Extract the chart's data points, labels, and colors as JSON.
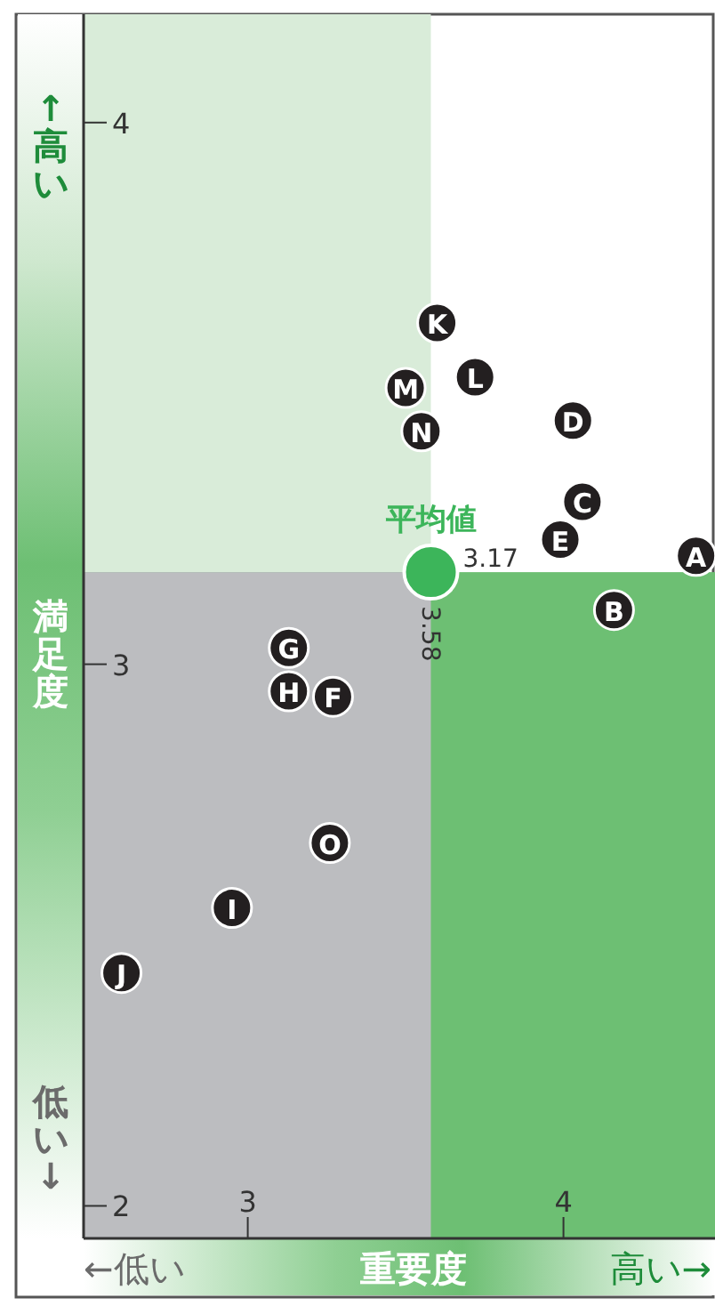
{
  "chart_data": {
    "type": "scatter",
    "xlabel": "重要度",
    "ylabel": "満足度",
    "xlim": [
      2.48,
      4.48
    ],
    "ylim": [
      1.94,
      4.2
    ],
    "xticks": [
      3,
      4
    ],
    "yticks": [
      2,
      3,
      4
    ],
    "grid": false,
    "marker": "circle",
    "bands": [
      {
        "axis": "x",
        "from": 2.48,
        "to": 3.58,
        "color": "#d9ecd9"
      },
      {
        "axis": "y",
        "from": 1.94,
        "to": 3.17,
        "color": "#6dbf73"
      }
    ],
    "series": [
      {
        "name": "平均値",
        "color": "#3cb55a",
        "x": [
          3.58
        ],
        "values": [
          3.17
        ]
      },
      {
        "name": "A",
        "color": "#231f20",
        "x": [
          4.42
        ],
        "values": [
          3.2
        ]
      },
      {
        "name": "B",
        "color": "#231f20",
        "x": [
          4.16
        ],
        "values": [
          3.1
        ]
      },
      {
        "name": "C",
        "color": "#231f20",
        "x": [
          4.06
        ],
        "values": [
          3.3
        ]
      },
      {
        "name": "D",
        "color": "#231f20",
        "x": [
          4.03
        ],
        "values": [
          3.45
        ]
      },
      {
        "name": "E",
        "color": "#231f20",
        "x": [
          3.99
        ],
        "values": [
          3.23
        ]
      },
      {
        "name": "F",
        "color": "#231f20",
        "x": [
          3.27
        ],
        "values": [
          2.94
        ]
      },
      {
        "name": "G",
        "color": "#231f20",
        "x": [
          3.13
        ],
        "values": [
          3.03
        ]
      },
      {
        "name": "H",
        "color": "#231f20",
        "x": [
          3.13
        ],
        "values": [
          2.95
        ]
      },
      {
        "name": "I",
        "color": "#231f20",
        "x": [
          2.95
        ],
        "values": [
          2.55
        ]
      },
      {
        "name": "J",
        "color": "#231f20",
        "x": [
          2.6
        ],
        "values": [
          2.43
        ]
      },
      {
        "name": "K",
        "color": "#231f20",
        "x": [
          3.6
        ],
        "values": [
          3.63
        ]
      },
      {
        "name": "L",
        "color": "#231f20",
        "x": [
          3.72
        ],
        "values": [
          3.53
        ]
      },
      {
        "name": "M",
        "color": "#231f20",
        "x": [
          3.5
        ],
        "values": [
          3.51
        ]
      },
      {
        "name": "N",
        "color": "#231f20",
        "x": [
          3.55
        ],
        "values": [
          3.43
        ]
      },
      {
        "name": "O",
        "color": "#231f20",
        "x": [
          3.26
        ],
        "values": [
          2.67
        ]
      }
    ],
    "annotations": [
      "↑高い",
      "低い↓",
      "←低い",
      "高い→",
      {
        "text": "3.17",
        "x": 3.58,
        "y": 3.17
      },
      {
        "text": "3.58",
        "x": 3.58,
        "y": 3.17
      }
    ]
  }
}
